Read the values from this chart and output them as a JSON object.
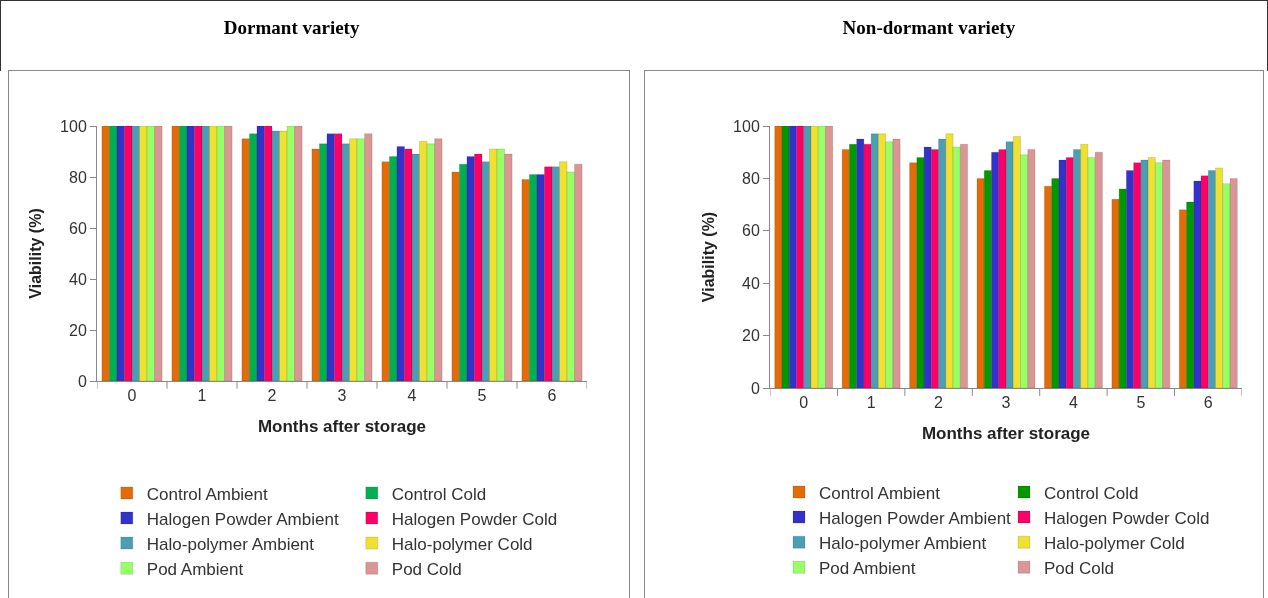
{
  "chart_data": [
    {
      "type": "bar",
      "title": "Dormant variety",
      "xlabel": "Months after storage",
      "ylabel": "Viability (%)",
      "categories": [
        "0",
        "1",
        "2",
        "3",
        "4",
        "5",
        "6"
      ],
      "ylim": [
        0,
        100
      ],
      "yticks": [
        0,
        20,
        40,
        60,
        80,
        100
      ],
      "grid": false,
      "legend": "bottom",
      "series": [
        {
          "name": "Control Ambient",
          "color": "#e36c09",
          "values": [
            100,
            100,
            95,
            91,
            86,
            82,
            79
          ]
        },
        {
          "name": "Control Cold",
          "color": "#00b050",
          "values": [
            100,
            100,
            97,
            93,
            88,
            85,
            81
          ]
        },
        {
          "name": "Halogen Powder Ambient",
          "color": "#3333cc",
          "values": [
            100,
            100,
            100,
            97,
            92,
            88,
            81
          ]
        },
        {
          "name": "Halogen Powder Cold",
          "color": "#ff0066",
          "values": [
            100,
            100,
            100,
            97,
            91,
            89,
            84
          ]
        },
        {
          "name": "Halo-polymer Ambient",
          "color": "#4a9fb5",
          "values": [
            100,
            100,
            98,
            93,
            89,
            86,
            84
          ]
        },
        {
          "name": "Halo-polymer Cold",
          "color": "#f0e030",
          "values": [
            100,
            100,
            98,
            95,
            94,
            91,
            86
          ]
        },
        {
          "name": "Pod Ambient",
          "color": "#99ff66",
          "values": [
            100,
            100,
            100,
            95,
            93,
            91,
            82
          ]
        },
        {
          "name": "Pod Cold",
          "color": "#d99694",
          "values": [
            100,
            100,
            100,
            97,
            95,
            89,
            85
          ]
        }
      ]
    },
    {
      "type": "bar",
      "title": "Non-dormant variety",
      "xlabel": "Months after storage",
      "ylabel": "Viability (%)",
      "categories": [
        "0",
        "1",
        "2",
        "3",
        "4",
        "5",
        "6"
      ],
      "ylim": [
        0,
        100
      ],
      "yticks": [
        0,
        20,
        40,
        60,
        80,
        100
      ],
      "grid": false,
      "legend": "bottom",
      "series": [
        {
          "name": "Control Ambient",
          "color": "#e36c09",
          "values": [
            100,
            91,
            86,
            80,
            77,
            72,
            68
          ]
        },
        {
          "name": "Control Cold",
          "color": "#009900",
          "values": [
            100,
            93,
            88,
            83,
            80,
            76,
            71
          ]
        },
        {
          "name": "Halogen Powder Ambient",
          "color": "#3333cc",
          "values": [
            100,
            95,
            92,
            90,
            87,
            83,
            79
          ]
        },
        {
          "name": "Halogen Powder Cold",
          "color": "#ff0066",
          "values": [
            100,
            93,
            91,
            91,
            88,
            86,
            81
          ]
        },
        {
          "name": "Halo-polymer Ambient",
          "color": "#4a9fb5",
          "values": [
            100,
            97,
            95,
            94,
            91,
            87,
            83
          ]
        },
        {
          "name": "Halo-polymer Cold",
          "color": "#f0e030",
          "values": [
            100,
            97,
            97,
            96,
            93,
            88,
            84
          ]
        },
        {
          "name": "Pod Ambient",
          "color": "#99ff66",
          "values": [
            100,
            94,
            92,
            89,
            88,
            86,
            78
          ]
        },
        {
          "name": "Pod Cold",
          "color": "#d99694",
          "values": [
            100,
            95,
            93,
            91,
            90,
            87,
            80
          ]
        }
      ]
    }
  ]
}
